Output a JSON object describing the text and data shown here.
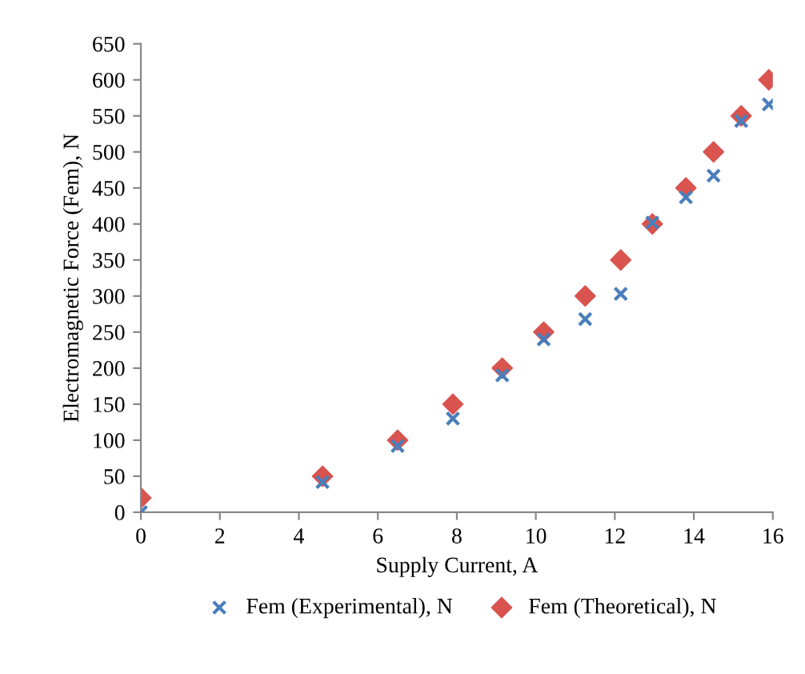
{
  "chart_data": {
    "type": "scatter",
    "xlabel": "Supply Current, A",
    "ylabel": "Electromagnetic Force (Fem), N",
    "x": [
      0,
      4.6,
      6.5,
      7.9,
      9.15,
      10.2,
      11.25,
      12.15,
      12.95,
      13.8,
      14.5,
      15.2,
      15.9
    ],
    "series": [
      {
        "name": "Fem (Experimental), N",
        "color": "#4a7ebb",
        "marker": "cross",
        "values": [
          0,
          42,
          92,
          130,
          190,
          240,
          268,
          303,
          402,
          437,
          467,
          543,
          566
        ]
      },
      {
        "name": "Fem (Theoretical), N",
        "color": "#d9534f",
        "marker": "diamond",
        "values": [
          20,
          50,
          100,
          150,
          200,
          250,
          300,
          350,
          400,
          450,
          500,
          550,
          600
        ]
      }
    ],
    "xlim": [
      0,
      16
    ],
    "xticks": [
      0,
      2,
      4,
      6,
      8,
      10,
      12,
      14,
      16
    ],
    "ylim": [
      0,
      650
    ],
    "yticks": [
      0,
      50,
      100,
      150,
      200,
      250,
      300,
      350,
      400,
      450,
      500,
      550,
      600,
      650
    ],
    "grid": false,
    "legend": "bottom"
  }
}
